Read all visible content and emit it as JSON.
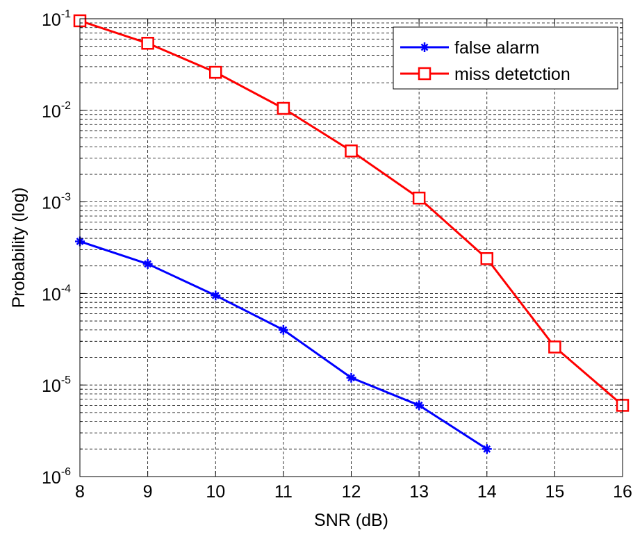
{
  "chart_data": {
    "type": "line",
    "title": "",
    "xlabel": "SNR (dB)",
    "ylabel": "Probability (log)",
    "x_scale": "linear",
    "y_scale": "log",
    "xlim": [
      8,
      16
    ],
    "ylim": [
      1e-06,
      0.1
    ],
    "grid": true,
    "legend_position": "top-right",
    "x_ticks": [
      8,
      9,
      10,
      11,
      12,
      13,
      14,
      15,
      16
    ],
    "x_tick_labels": [
      "8",
      "9",
      "10",
      "11",
      "12",
      "13",
      "14",
      "15",
      "16"
    ],
    "y_ticks": [
      {
        "value": 1e-06,
        "base": "10",
        "exp": "-6"
      },
      {
        "value": 1e-05,
        "base": "10",
        "exp": "-5"
      },
      {
        "value": 0.0001,
        "base": "10",
        "exp": "-4"
      },
      {
        "value": 0.001,
        "base": "10",
        "exp": "-3"
      },
      {
        "value": 0.01,
        "base": "10",
        "exp": "-2"
      },
      {
        "value": 0.1,
        "base": "10",
        "exp": "-1"
      }
    ],
    "series": [
      {
        "name": "false alarm",
        "color": "#0000ff",
        "marker": "star",
        "x": [
          8,
          9,
          10,
          11,
          12,
          13,
          14
        ],
        "y": [
          0.00037,
          0.00021,
          9.5e-05,
          4e-05,
          1.2e-05,
          6e-06,
          2e-06
        ]
      },
      {
        "name": "miss detetction",
        "color": "#ff0000",
        "marker": "square",
        "x": [
          8,
          9,
          10,
          11,
          12,
          13,
          14,
          15,
          16
        ],
        "y": [
          0.095,
          0.054,
          0.026,
          0.0105,
          0.0036,
          0.0011,
          0.00024,
          2.6e-05,
          6e-06
        ]
      }
    ]
  }
}
